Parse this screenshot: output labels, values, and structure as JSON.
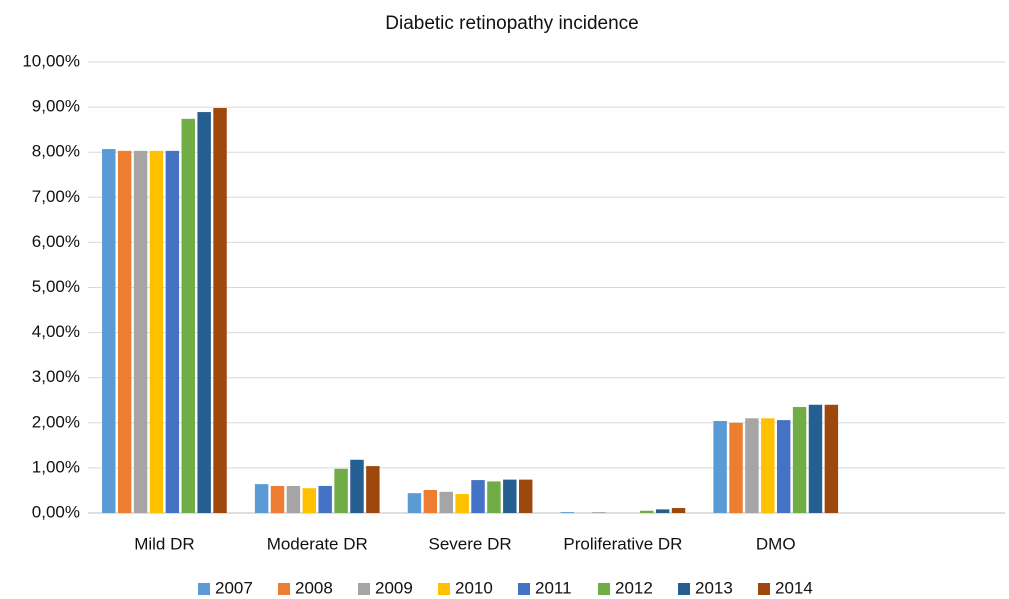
{
  "chart_data": {
    "type": "bar",
    "title": "Diabetic retinopathy  incidence",
    "categories": [
      "Mild DR",
      "Moderate DR",
      "Severe DR",
      "Proliferative DR",
      "DMO",
      null
    ],
    "series": [
      {
        "name": "2007",
        "color": "#5b9bd5",
        "values": [
          8.07,
          0.64,
          0.44,
          0.02,
          2.04,
          null
        ]
      },
      {
        "name": "2008",
        "color": "#ed7d31",
        "values": [
          8.03,
          0.6,
          0.51,
          0,
          2.0,
          null
        ]
      },
      {
        "name": "2009",
        "color": "#a5a5a5",
        "values": [
          8.03,
          0.6,
          0.47,
          0.02,
          2.1,
          null
        ]
      },
      {
        "name": "2010",
        "color": "#ffc000",
        "values": [
          8.03,
          0.55,
          0.42,
          0,
          2.1,
          null
        ]
      },
      {
        "name": "2011",
        "color": "#4472c4",
        "values": [
          8.03,
          0.6,
          0.73,
          0,
          2.06,
          null
        ]
      },
      {
        "name": "2012",
        "color": "#70ad47",
        "values": [
          8.74,
          0.98,
          0.7,
          0.05,
          2.35,
          null
        ]
      },
      {
        "name": "2013",
        "color": "#255e91",
        "values": [
          8.89,
          1.18,
          0.74,
          0.08,
          2.4,
          null
        ]
      },
      {
        "name": "2014",
        "color": "#9e480e",
        "values": [
          8.98,
          1.04,
          0.74,
          0.11,
          2.4,
          null
        ]
      }
    ],
    "ylim": [
      0,
      10
    ],
    "yticks": [
      {
        "value": 0,
        "label": "0,00%"
      },
      {
        "value": 1,
        "label": "1,00%"
      },
      {
        "value": 2,
        "label": "2,00%"
      },
      {
        "value": 3,
        "label": "3,00%"
      },
      {
        "value": 4,
        "label": "4,00%"
      },
      {
        "value": 5,
        "label": "5,00%"
      },
      {
        "value": 6,
        "label": "6,00%"
      },
      {
        "value": 7,
        "label": "7,00%"
      },
      {
        "value": 8,
        "label": "8,00%"
      },
      {
        "value": 9,
        "label": "9,00%"
      },
      {
        "value": 10,
        "label": "10,00%"
      }
    ],
    "grid": true,
    "legend": "bottom"
  }
}
